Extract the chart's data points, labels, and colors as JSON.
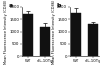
{
  "panels": [
    {
      "label": "a",
      "categories": [
        "WT",
        "vIL-10Tg"
      ],
      "values": [
        1700,
        1200
      ],
      "errors": [
        120,
        130
      ],
      "ylim": [
        0,
        2000
      ],
      "yticks": [
        0,
        500,
        1000,
        1500,
        2000
      ],
      "ylabel": "Mean Fluorescence Intensity (CD80)",
      "bar_color": "#111111",
      "error_color": "#111111"
    },
    {
      "label": "b",
      "categories": [
        "WT",
        "vIL-10Tg"
      ],
      "values": [
        1750,
        1300
      ],
      "errors": [
        200,
        80
      ],
      "ylim": [
        0,
        2000
      ],
      "yticks": [
        0,
        500,
        1000,
        1500,
        2000
      ],
      "ylabel": "Mean Fluorescence Intensity (CD86)",
      "bar_color": "#111111",
      "error_color": "#111111"
    }
  ],
  "fig_width": 1.0,
  "fig_height": 0.75,
  "dpi": 100,
  "background_color": "#ffffff",
  "tick_fontsize": 2.8,
  "ylabel_fontsize": 2.5,
  "panel_label_fontsize": 4.5,
  "bar_width": 0.55
}
